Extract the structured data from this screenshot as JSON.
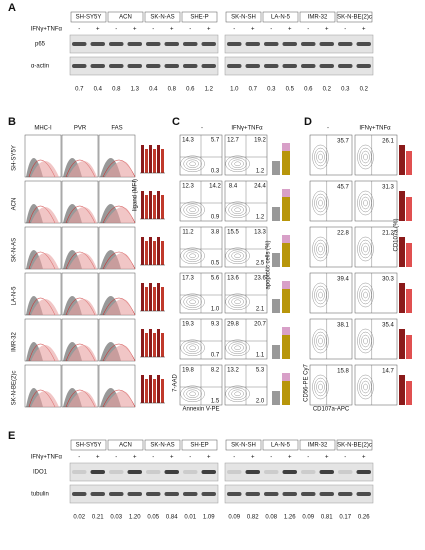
{
  "panel_a": {
    "letter": "A",
    "treatment": "IFNγ+TNFα",
    "blots": [
      "p65",
      "α-actin"
    ],
    "groups": [
      {
        "cell_lines": [
          "SH-SY5Y",
          "ACN",
          "SK-N-AS",
          "SHE-P"
        ],
        "signs": [
          "-",
          "+",
          "-",
          "+",
          "-",
          "+",
          "-",
          "+"
        ],
        "ratios": [
          "0.7",
          "0.4",
          "0.8",
          "1.3",
          "0.4",
          "0.8",
          "0.6",
          "1.2"
        ]
      },
      {
        "cell_lines": [
          "SK-N-SH",
          "LA-N-5",
          "IMR-32",
          "SK-N-BE(2)c"
        ],
        "signs": [
          "-",
          "+",
          "-",
          "+",
          "-",
          "+",
          "-",
          "+"
        ],
        "ratios": [
          "1.0",
          "0.7",
          "0.3",
          "0.5",
          "0.6",
          "0.2",
          "0.3",
          "0.2"
        ]
      }
    ]
  },
  "panel_b": {
    "letter": "B",
    "columns": [
      "MHC-I",
      "PVR",
      "FAS"
    ],
    "cell_lines": [
      "SH-SY5Y",
      "ACN",
      "SK-N-AS",
      "LA-N-5",
      "IMR-32",
      "SK-N-BE(2)c"
    ],
    "y_label": "ligand (MFI)"
  },
  "panel_c": {
    "letter": "C",
    "conditions": [
      "-",
      "IFNγ+TNFα"
    ],
    "y_label": "7-AAD",
    "x_label": "Annexin V-PE",
    "bar_label": "apoptotic cells (%)",
    "rows": [
      {
        "control": [
          "14.3",
          "5.7",
          "0.3"
        ],
        "treated": [
          "12.7",
          "19.2",
          "1.2"
        ]
      },
      {
        "control": [
          "12.3",
          "14.2",
          "0.9"
        ],
        "treated": [
          "8.4",
          "24.4",
          "1.2"
        ]
      },
      {
        "control": [
          "11.2",
          "3.8",
          "0.5"
        ],
        "treated": [
          "15.5",
          "13.3",
          "2.5"
        ]
      },
      {
        "control": [
          "17.3",
          "5.6",
          "1.0"
        ],
        "treated": [
          "13.6",
          "23.6",
          "2.1"
        ]
      },
      {
        "control": [
          "19.3",
          "9.3",
          "0.7"
        ],
        "treated": [
          "29.8",
          "20.7",
          "1.1"
        ]
      },
      {
        "control": [
          "19.8",
          "8.2",
          "1.5"
        ],
        "treated": [
          "13.2",
          "5.3",
          "2.0"
        ]
      }
    ]
  },
  "panel_d": {
    "letter": "D",
    "conditions": [
      "-",
      "IFNγ+TNFα"
    ],
    "y_label": "CD56-PE Cy7",
    "x_label": "CD107a-APC",
    "bar_label": "CD107a (%)",
    "rows": [
      {
        "control": "35.7",
        "treated": "26.1"
      },
      {
        "control": "45.7",
        "treated": "31.3"
      },
      {
        "control": "22.8",
        "treated": "21.2"
      },
      {
        "control": "39.4",
        "treated": "30.3"
      },
      {
        "control": "38.1",
        "treated": "35.4"
      },
      {
        "control": "15.8",
        "treated": "14.7"
      }
    ]
  },
  "panel_e": {
    "letter": "E",
    "treatment": "IFNγ+TNFα",
    "blots": [
      "IDO1",
      "tubulin"
    ],
    "groups": [
      {
        "cell_lines": [
          "SH-SY5Y",
          "ACN",
          "SK-N-AS",
          "SH-EP"
        ],
        "signs": [
          "-",
          "+",
          "-",
          "+",
          "-",
          "+",
          "-",
          "+"
        ],
        "ratios": [
          "0.02",
          "0.21",
          "0.03",
          "1.20",
          "0.05",
          "0.84",
          "0.01",
          "1.09"
        ]
      },
      {
        "cell_lines": [
          "SK-N-SH",
          "LA-N-5",
          "IMR-32",
          "SK-N-BE(2)c"
        ],
        "signs": [
          "-",
          "+",
          "-",
          "+",
          "-",
          "+",
          "-",
          "+"
        ],
        "ratios": [
          "0.09",
          "0.82",
          "0.08",
          "1.26",
          "0.09",
          "0.81",
          "0.17",
          "0.26"
        ]
      }
    ]
  }
}
